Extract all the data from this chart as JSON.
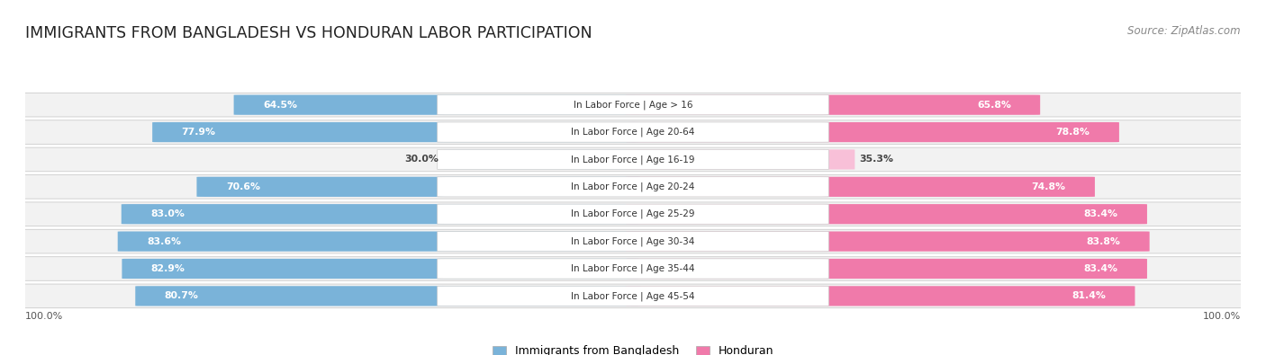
{
  "title": "IMMIGRANTS FROM BANGLADESH VS HONDURAN LABOR PARTICIPATION",
  "source": "Source: ZipAtlas.com",
  "categories": [
    "In Labor Force | Age > 16",
    "In Labor Force | Age 20-64",
    "In Labor Force | Age 16-19",
    "In Labor Force | Age 20-24",
    "In Labor Force | Age 25-29",
    "In Labor Force | Age 30-34",
    "In Labor Force | Age 35-44",
    "In Labor Force | Age 45-54"
  ],
  "bangladesh_values": [
    64.5,
    77.9,
    30.0,
    70.6,
    83.0,
    83.6,
    82.9,
    80.7
  ],
  "honduran_values": [
    65.8,
    78.8,
    35.3,
    74.8,
    83.4,
    83.8,
    83.4,
    81.4
  ],
  "bangladesh_color": "#7ab3d9",
  "honduran_color": "#f07aaa",
  "bangladesh_light_color": "#c5dff0",
  "honduran_light_color": "#f8c0d8",
  "row_bg_color": "#f2f2f2",
  "row_bg_alt": "#ebebeb",
  "max_value": 100.0,
  "legend_bangladesh": "Immigrants from Bangladesh",
  "legend_honduran": "Honduran",
  "background_color": "#ffffff",
  "title_fontsize": 12.5,
  "source_fontsize": 8.5,
  "label_fontsize": 7.8,
  "cat_fontsize": 7.5
}
